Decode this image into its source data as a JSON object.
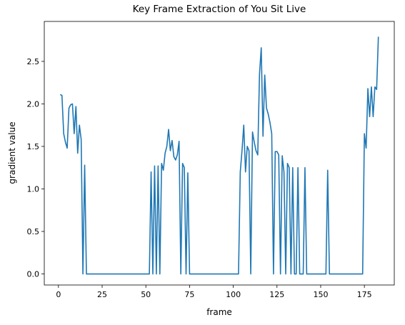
{
  "chart_data": {
    "type": "line",
    "title": "Key Frame Extraction of You Sit Live",
    "xlabel": "frame",
    "ylabel": "gradient value",
    "x": [
      1,
      2,
      3,
      4,
      5,
      6,
      7,
      8,
      9,
      10,
      11,
      12,
      13,
      14,
      15,
      16,
      17,
      18,
      19,
      20,
      21,
      22,
      23,
      24,
      25,
      26,
      27,
      28,
      29,
      30,
      31,
      32,
      33,
      34,
      35,
      36,
      37,
      38,
      39,
      40,
      41,
      42,
      43,
      44,
      45,
      46,
      47,
      48,
      49,
      50,
      51,
      52,
      53,
      54,
      55,
      56,
      57,
      58,
      59,
      60,
      61,
      62,
      63,
      64,
      65,
      66,
      67,
      68,
      69,
      70,
      71,
      72,
      73,
      74,
      75,
      76,
      77,
      78,
      79,
      80,
      81,
      82,
      83,
      84,
      85,
      86,
      87,
      88,
      89,
      90,
      91,
      92,
      93,
      94,
      95,
      96,
      97,
      98,
      99,
      100,
      101,
      102,
      103,
      104,
      105,
      106,
      107,
      108,
      109,
      110,
      111,
      112,
      113,
      114,
      115,
      116,
      117,
      118,
      119,
      120,
      121,
      122,
      123,
      124,
      125,
      126,
      127,
      128,
      129,
      130,
      131,
      132,
      133,
      134,
      135,
      136,
      137,
      138,
      139,
      140,
      141,
      142,
      143,
      144,
      145,
      146,
      147,
      148,
      149,
      150,
      151,
      152,
      153,
      154,
      155,
      156,
      157,
      158,
      159,
      160,
      161,
      162,
      163,
      164,
      165,
      166,
      167,
      168,
      169,
      170,
      171,
      172,
      173,
      174,
      175,
      176,
      177,
      178,
      179,
      180,
      181,
      182,
      183
    ],
    "series": [
      {
        "name": "gradient value",
        "color": "#1f77b4",
        "values": [
          2.11,
          2.1,
          1.65,
          1.55,
          1.48,
          1.95,
          1.99,
          2.0,
          1.65,
          1.97,
          1.42,
          1.75,
          1.58,
          0,
          1.28,
          0,
          0,
          0,
          0,
          0,
          0,
          0,
          0,
          0,
          0,
          0,
          0,
          0,
          0,
          0,
          0,
          0,
          0,
          0,
          0,
          0,
          0,
          0,
          0,
          0,
          0,
          0,
          0,
          0,
          0,
          0,
          0,
          0,
          0,
          0,
          0,
          0,
          1.2,
          0,
          1.27,
          0,
          1.27,
          0,
          1.3,
          1.22,
          1.42,
          1.5,
          1.7,
          1.45,
          1.57,
          1.38,
          1.34,
          1.4,
          1.56,
          0,
          1.3,
          1.25,
          0,
          1.19,
          0,
          0,
          0,
          0,
          0,
          0,
          0,
          0,
          0,
          0,
          0,
          0,
          0,
          0,
          0,
          0,
          0,
          0,
          0,
          0,
          0,
          0,
          0,
          0,
          0,
          0,
          0,
          0,
          0,
          1.2,
          1.45,
          1.75,
          1.2,
          1.5,
          1.45,
          0,
          1.67,
          1.55,
          1.45,
          1.4,
          2.35,
          2.66,
          1.62,
          2.34,
          1.95,
          1.88,
          1.78,
          1.65,
          0,
          1.44,
          1.44,
          1.4,
          0,
          1.39,
          1.2,
          0,
          1.3,
          1.25,
          0,
          1.25,
          0,
          0,
          1.25,
          0,
          0,
          0,
          1.25,
          0,
          0,
          0,
          0,
          0,
          0,
          0,
          0,
          0,
          0,
          0,
          0,
          1.22,
          0,
          0,
          0,
          0,
          0,
          0,
          0,
          0,
          0,
          0,
          0,
          0,
          0,
          0,
          0,
          0,
          0,
          0,
          0,
          0,
          1.65,
          1.48,
          2.18,
          1.85,
          2.2,
          1.85,
          2.2,
          2.17,
          2.79
        ]
      }
    ],
    "xlim": [
      -8.1,
      192.1
    ],
    "xticks": [
      0,
      25,
      50,
      75,
      100,
      125,
      150,
      175
    ],
    "ylim": [
      -0.13,
      2.97
    ],
    "yticks": [
      {
        "value": 0,
        "label": "0.0"
      },
      0.5,
      {
        "value": 1,
        "label": "1.0"
      },
      1.5,
      {
        "value": 2,
        "label": "2.0"
      },
      2.5
    ]
  }
}
